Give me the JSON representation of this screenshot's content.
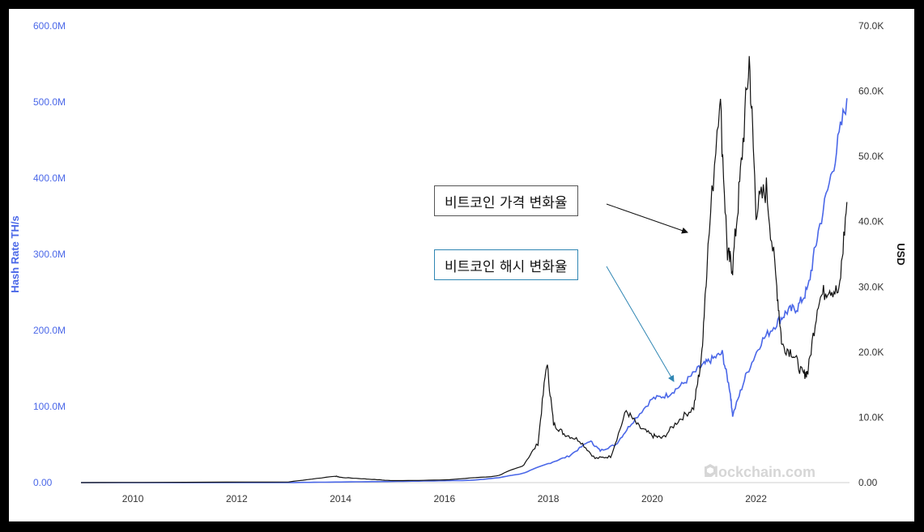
{
  "chart_data": {
    "type": "line",
    "title": "",
    "xlabel": "",
    "ylabel_left": "Hash Rate TH/s",
    "ylabel_right": "USD",
    "x_ticks": [
      "2010",
      "2012",
      "2014",
      "2016",
      "2018",
      "2020",
      "2022"
    ],
    "y_left_ticks": [
      "0.00",
      "100.0M",
      "200.0M",
      "300.0M",
      "400.0M",
      "500.0M",
      "600.0M"
    ],
    "y_right_ticks": [
      "0.00",
      "10.0K",
      "20.0K",
      "30.0K",
      "40.0K",
      "50.0K",
      "60.0K",
      "70.0K"
    ],
    "xlim": [
      2009.0,
      2023.8
    ],
    "ylim_left": [
      0,
      600000000
    ],
    "ylim_right": [
      0,
      70000
    ],
    "grid": false,
    "colors": {
      "hash_rate": "#4a67e8",
      "price": "#111111",
      "callout_hash_border": "#2f86b3"
    },
    "series": [
      {
        "name": "Hash Rate TH/s",
        "axis": "left",
        "x": [
          2009.0,
          2013.0,
          2014.0,
          2015.0,
          2016.0,
          2016.5,
          2017.0,
          2017.5,
          2018.0,
          2018.4,
          2018.8,
          2019.0,
          2019.3,
          2019.6,
          2020.0,
          2020.3,
          2020.6,
          2020.9,
          2021.1,
          2021.35,
          2021.5,
          2021.55,
          2021.8,
          2022.1,
          2022.4,
          2022.6,
          2022.8,
          2023.0,
          2023.2,
          2023.5,
          2023.75
        ],
        "y": [
          0,
          50000,
          800000,
          1500000,
          2500000,
          3000000,
          6000000,
          12000000,
          25000000,
          35000000,
          55000000,
          42000000,
          50000000,
          78000000,
          110000000,
          115000000,
          130000000,
          150000000,
          160000000,
          170000000,
          120000000,
          88000000,
          140000000,
          185000000,
          210000000,
          225000000,
          230000000,
          255000000,
          330000000,
          420000000,
          505000000
        ]
      },
      {
        "name": "Price USD",
        "axis": "right",
        "x": [
          2009.0,
          2013.0,
          2013.9,
          2014.0,
          2014.5,
          2015.0,
          2016.0,
          2017.0,
          2017.5,
          2017.8,
          2017.97,
          2018.1,
          2018.3,
          2018.6,
          2018.9,
          2019.2,
          2019.5,
          2019.75,
          2020.0,
          2020.2,
          2020.5,
          2020.8,
          2020.95,
          2021.05,
          2021.3,
          2021.45,
          2021.55,
          2021.7,
          2021.87,
          2022.0,
          2022.2,
          2022.4,
          2022.5,
          2022.7,
          2022.9,
          2023.0,
          2023.2,
          2023.4,
          2023.6,
          2023.75
        ],
        "y": [
          0,
          100,
          1000,
          800,
          550,
          300,
          400,
          1000,
          2500,
          6000,
          18500,
          9000,
          7500,
          6500,
          3700,
          4000,
          11000,
          8500,
          7200,
          6800,
          9500,
          11500,
          19000,
          33000,
          60000,
          35000,
          33000,
          47000,
          65000,
          42000,
          45000,
          30000,
          21000,
          20000,
          16500,
          17000,
          28000,
          30000,
          29000,
          43000
        ]
      }
    ],
    "annotations": {
      "price": "비트코인 가격 변화율",
      "hash": "비트코인 해시 변화율"
    }
  },
  "watermark": {
    "icon": "blockchain-logo-icon",
    "text": "Blockchain.com"
  }
}
